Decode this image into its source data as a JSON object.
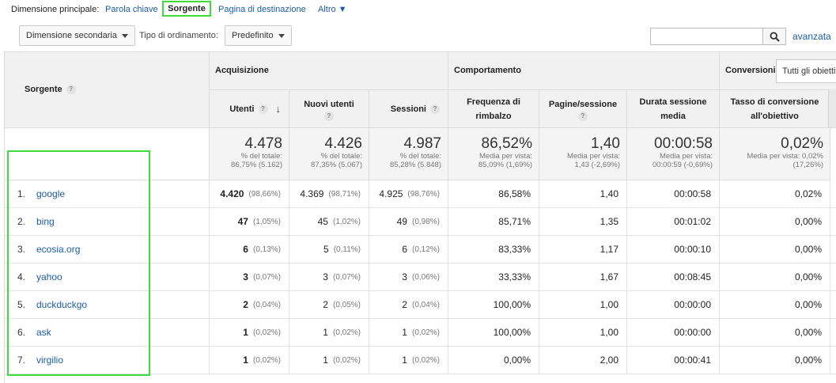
{
  "dimension_bar": {
    "label": "Dimensione principale:",
    "options": [
      "Parola chiave",
      "Sorgente",
      "Pagina di destinazione",
      "Altro"
    ],
    "active": "Sorgente"
  },
  "toolbar": {
    "secondary_dimension": "Dimensione secondaria",
    "sort_label": "Tipo di ordinamento:",
    "sort_value": "Predefinito",
    "search_placeholder": "",
    "advanced": "avanzata"
  },
  "table": {
    "dimension_header": "Sorgente",
    "groups": {
      "acquisition": "Acquisizione",
      "behavior": "Comportamento",
      "conversions": "Conversioni",
      "conversions_select": "Tutti gli obiettivi"
    },
    "columns": {
      "users": "Utenti",
      "new_users": "Nuovi utenti",
      "sessions": "Sessioni",
      "bounce_rate": "Frequenza di rimbalzo",
      "pages_session": "Pagine/sessione",
      "avg_duration": "Durata sessione media",
      "conv_rate": "Tasso di conversione all'obiettivo"
    },
    "totals": {
      "users": {
        "value": "4.478",
        "sub1": "% del totale:",
        "sub2": "86,75% (5.162)"
      },
      "new_users": {
        "value": "4.426",
        "sub1": "% del totale:",
        "sub2": "87,35% (5.067)"
      },
      "sessions": {
        "value": "4.987",
        "sub1": "% del totale:",
        "sub2": "85,28% (5.848)"
      },
      "bounce_rate": {
        "value": "86,52%",
        "sub1": "Media per vista:",
        "sub2": "85,09% (1,69%)"
      },
      "pages_session": {
        "value": "1,40",
        "sub1": "Media per vista:",
        "sub2": "1,43 (-2,69%)"
      },
      "avg_duration": {
        "value": "00:00:58",
        "sub1": "Media per vista:",
        "sub2": "00:00:59 (-0,69%)"
      },
      "conv_rate": {
        "value": "0,02%",
        "sub1": "Media per vista: 0,02%",
        "sub2": "(17,26%)"
      }
    },
    "rows": [
      {
        "num": "1.",
        "source": "google",
        "users": "4.420",
        "users_pct": "(98,66%)",
        "new_users": "4.369",
        "new_users_pct": "(98,71%)",
        "sessions": "4.925",
        "sessions_pct": "(98,76%)",
        "bounce": "86,58%",
        "pages": "1,40",
        "duration": "00:00:58",
        "conv": "0,02%"
      },
      {
        "num": "2.",
        "source": "bing",
        "users": "47",
        "users_pct": "(1,05%)",
        "new_users": "45",
        "new_users_pct": "(1,02%)",
        "sessions": "49",
        "sessions_pct": "(0,98%)",
        "bounce": "85,71%",
        "pages": "1,35",
        "duration": "00:01:02",
        "conv": "0,00%"
      },
      {
        "num": "3.",
        "source": "ecosia.org",
        "users": "6",
        "users_pct": "(0,13%)",
        "new_users": "5",
        "new_users_pct": "(0,11%)",
        "sessions": "6",
        "sessions_pct": "(0,12%)",
        "bounce": "83,33%",
        "pages": "1,17",
        "duration": "00:00:10",
        "conv": "0,00%"
      },
      {
        "num": "4.",
        "source": "yahoo",
        "users": "3",
        "users_pct": "(0,07%)",
        "new_users": "3",
        "new_users_pct": "(0,07%)",
        "sessions": "3",
        "sessions_pct": "(0,06%)",
        "bounce": "33,33%",
        "pages": "1,67",
        "duration": "00:08:45",
        "conv": "0,00%"
      },
      {
        "num": "5.",
        "source": "duckduckgo",
        "users": "2",
        "users_pct": "(0,04%)",
        "new_users": "2",
        "new_users_pct": "(0,05%)",
        "sessions": "2",
        "sessions_pct": "(0,04%)",
        "bounce": "100,00%",
        "pages": "1,00",
        "duration": "00:00:00",
        "conv": "0,00%"
      },
      {
        "num": "6.",
        "source": "ask",
        "users": "1",
        "users_pct": "(0,02%)",
        "new_users": "1",
        "new_users_pct": "(0,02%)",
        "sessions": "1",
        "sessions_pct": "(0,02%)",
        "bounce": "100,00%",
        "pages": "1,00",
        "duration": "00:00:00",
        "conv": "0,00%"
      },
      {
        "num": "7.",
        "source": "virgilio",
        "users": "1",
        "users_pct": "(0,02%)",
        "new_users": "1",
        "new_users_pct": "(0,02%)",
        "sessions": "1",
        "sessions_pct": "(0,02%)",
        "bounce": "0,00%",
        "pages": "2,00",
        "duration": "00:00:41",
        "conv": "0,00%"
      }
    ]
  },
  "colors": {
    "link": "#1a5da6",
    "highlight": "#3ddc3d",
    "header_bg": "#f1f1f1"
  }
}
